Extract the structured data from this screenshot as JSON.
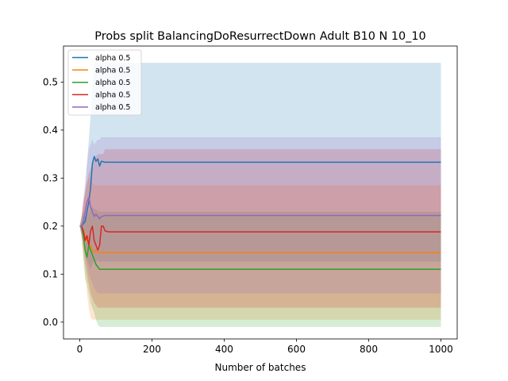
{
  "chart_data": {
    "type": "line",
    "title": "Probs split BalancingDoResurrectDown Adult B10 N 10_10",
    "xlabel": "Number of batches",
    "ylabel": "",
    "xlim": [
      -45,
      1045
    ],
    "ylim": [
      -0.035,
      0.575
    ],
    "xticks": [
      0,
      200,
      400,
      600,
      800,
      1000
    ],
    "yticks": [
      0.0,
      0.1,
      0.2,
      0.3,
      0.4,
      0.5
    ],
    "xtick_labels": [
      "0",
      "200",
      "400",
      "600",
      "800",
      "1000"
    ],
    "ytick_labels": [
      "0.0",
      "0.1",
      "0.2",
      "0.3",
      "0.4",
      "0.5"
    ],
    "grid": false,
    "legend_position": "top-left",
    "legend": [
      "alpha 0.5",
      "alpha 0.5",
      "alpha 0.5",
      "alpha 0.5",
      "alpha 0.5"
    ],
    "series": [
      {
        "name": "alpha 0.5",
        "color": "#1f77b4",
        "x": [
          0,
          5,
          10,
          15,
          20,
          25,
          30,
          35,
          40,
          45,
          50,
          55,
          60,
          70,
          80,
          100,
          1000
        ],
        "y": [
          0.2,
          0.2,
          0.205,
          0.21,
          0.23,
          0.25,
          0.28,
          0.33,
          0.345,
          0.335,
          0.34,
          0.325,
          0.335,
          0.333,
          0.333,
          0.333,
          0.333
        ],
        "lower": [
          0.2,
          0.19,
          0.17,
          0.15,
          0.13,
          0.12,
          0.11,
          0.12,
          0.13,
          0.125,
          0.128,
          0.125,
          0.126,
          0.126,
          0.126,
          0.126,
          0.126
        ],
        "upper": [
          0.2,
          0.21,
          0.24,
          0.28,
          0.33,
          0.38,
          0.43,
          0.49,
          0.54,
          0.54,
          0.54,
          0.54,
          0.54,
          0.54,
          0.54,
          0.54,
          0.54
        ]
      },
      {
        "name": "alpha 0.5",
        "color": "#ff7f0e",
        "x": [
          0,
          5,
          10,
          15,
          20,
          25,
          30,
          35,
          40,
          45,
          50,
          55,
          60,
          70,
          80,
          100,
          1000
        ],
        "y": [
          0.2,
          0.2,
          0.19,
          0.18,
          0.17,
          0.165,
          0.16,
          0.15,
          0.145,
          0.15,
          0.145,
          0.145,
          0.145,
          0.145,
          0.145,
          0.145,
          0.145
        ],
        "lower": [
          0.2,
          0.18,
          0.14,
          0.1,
          0.06,
          0.03,
          0.01,
          0.005,
          0.005,
          0.005,
          0.005,
          0.005,
          0.005,
          0.005,
          0.005,
          0.005,
          0.005
        ],
        "upper": [
          0.2,
          0.22,
          0.25,
          0.27,
          0.29,
          0.3,
          0.3,
          0.29,
          0.285,
          0.285,
          0.285,
          0.285,
          0.285,
          0.285,
          0.285,
          0.285,
          0.285
        ]
      },
      {
        "name": "alpha 0.5",
        "color": "#2ca02c",
        "x": [
          0,
          5,
          10,
          15,
          20,
          25,
          30,
          35,
          40,
          45,
          50,
          55,
          60,
          70,
          80,
          100,
          1000
        ],
        "y": [
          0.2,
          0.2,
          0.18,
          0.15,
          0.135,
          0.16,
          0.15,
          0.14,
          0.13,
          0.12,
          0.115,
          0.11,
          0.11,
          0.11,
          0.11,
          0.11,
          0.11
        ],
        "lower": [
          0.2,
          0.18,
          0.13,
          0.09,
          0.08,
          0.06,
          0.04,
          0.03,
          0.02,
          0.005,
          -0.005,
          -0.01,
          -0.01,
          -0.01,
          -0.01,
          -0.01,
          -0.01
        ],
        "upper": [
          0.2,
          0.22,
          0.23,
          0.22,
          0.22,
          0.23,
          0.24,
          0.24,
          0.235,
          0.235,
          0.232,
          0.23,
          0.23,
          0.23,
          0.23,
          0.23,
          0.23
        ]
      },
      {
        "name": "alpha 0.5",
        "color": "#d62728",
        "x": [
          0,
          5,
          10,
          15,
          20,
          25,
          30,
          35,
          40,
          45,
          50,
          55,
          60,
          65,
          70,
          80,
          100,
          1000
        ],
        "y": [
          0.2,
          0.2,
          0.19,
          0.17,
          0.18,
          0.16,
          0.19,
          0.2,
          0.17,
          0.16,
          0.15,
          0.16,
          0.2,
          0.2,
          0.19,
          0.188,
          0.188,
          0.188
        ],
        "lower": [
          0.2,
          0.18,
          0.15,
          0.12,
          0.1,
          0.08,
          0.06,
          0.05,
          0.04,
          0.035,
          0.03,
          0.03,
          0.03,
          0.03,
          0.03,
          0.03,
          0.03,
          0.03
        ],
        "upper": [
          0.2,
          0.22,
          0.25,
          0.27,
          0.29,
          0.31,
          0.32,
          0.33,
          0.34,
          0.345,
          0.35,
          0.35,
          0.35,
          0.35,
          0.36,
          0.36,
          0.36,
          0.36
        ]
      },
      {
        "name": "alpha 0.5",
        "color": "#9467bd",
        "x": [
          0,
          5,
          10,
          15,
          20,
          25,
          30,
          35,
          40,
          45,
          50,
          55,
          60,
          70,
          80,
          100,
          1000
        ],
        "y": [
          0.2,
          0.2,
          0.21,
          0.23,
          0.25,
          0.26,
          0.24,
          0.23,
          0.22,
          0.225,
          0.22,
          0.215,
          0.22,
          0.222,
          0.222,
          0.222,
          0.222
        ],
        "lower": [
          0.2,
          0.18,
          0.17,
          0.14,
          0.12,
          0.1,
          0.09,
          0.08,
          0.07,
          0.065,
          0.06,
          0.06,
          0.06,
          0.06,
          0.06,
          0.06,
          0.06
        ],
        "upper": [
          0.2,
          0.22,
          0.26,
          0.29,
          0.33,
          0.36,
          0.37,
          0.38,
          0.37,
          0.375,
          0.38,
          0.38,
          0.385,
          0.385,
          0.385,
          0.385,
          0.385
        ]
      }
    ]
  }
}
